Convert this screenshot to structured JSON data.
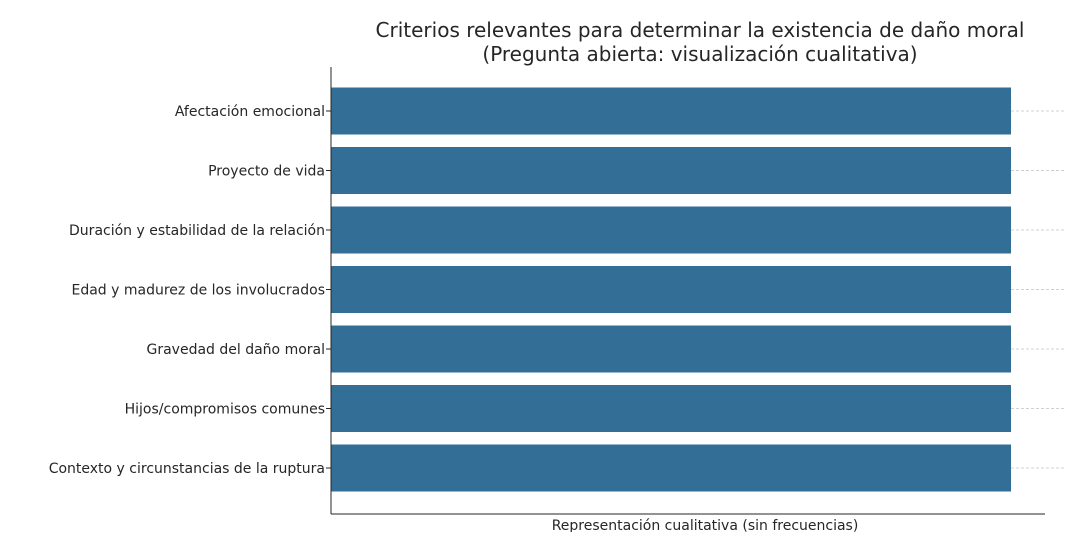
{
  "chart_data": {
    "type": "bar",
    "orientation": "horizontal",
    "title": "Criterios relevantes para determinar la existencia de daño moral\n(Pregunta abierta: visualización cualitativa)",
    "title_lines": [
      "Criterios relevantes para determinar la existencia de daño moral",
      "(Pregunta abierta: visualización cualitativa)"
    ],
    "xlabel": "Representación cualitativa (sin frecuencias)",
    "ylabel": "",
    "categories": [
      "Afectación emocional",
      "Proyecto de vida",
      "Duración y estabilidad de la relación",
      "Edad y madurez de los involucrados",
      "Gravedad del daño moral",
      "Hijos/compromisos comunes",
      "Contexto y circunstancias de la ruptura"
    ],
    "values": [
      1,
      1,
      1,
      1,
      1,
      1,
      1
    ],
    "xlim": [
      0,
      1.05
    ],
    "x_ticks_shown": false,
    "grid": "horizontal dashed",
    "legend": "none",
    "bar_color": "#336e96",
    "grid_color": "#d0d0d0",
    "axis_color": "#262626"
  }
}
